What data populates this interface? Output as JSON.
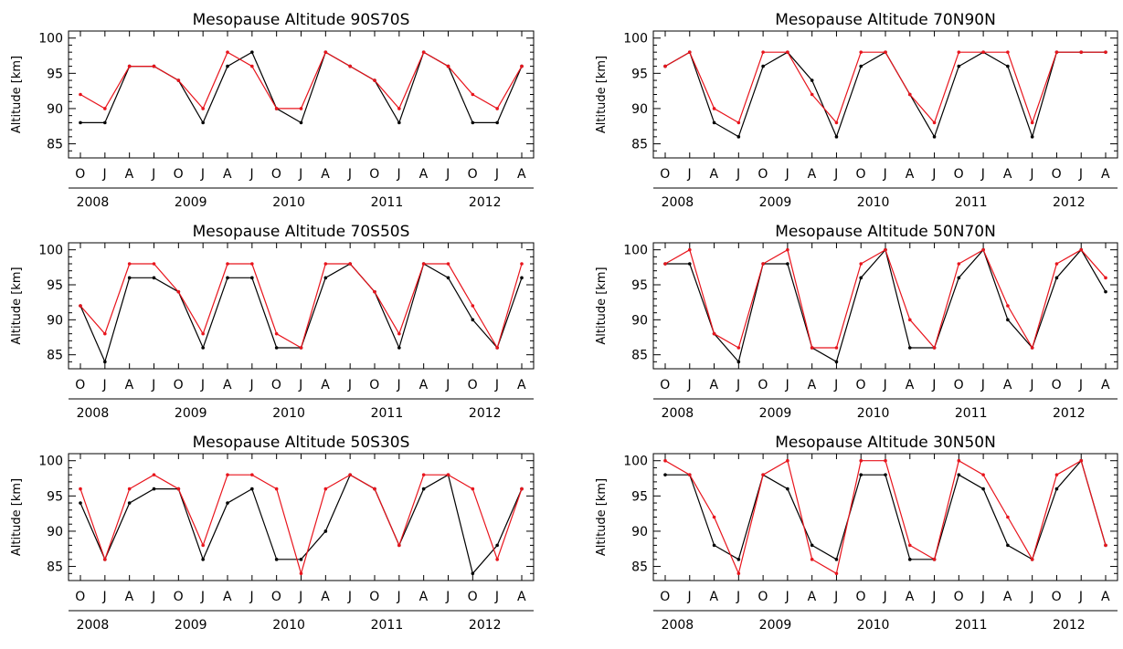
{
  "colors": {
    "series_red": "#e8141c",
    "series_black": "#000000",
    "axis": "#000000"
  },
  "chart_data": [
    {
      "type": "line",
      "title": "Mesopause Altitude 90S70S",
      "ylabel": "Altitude [km]",
      "ylim": [
        83,
        101
      ],
      "yticks": [
        85,
        90,
        95,
        100
      ],
      "x_tick_labels": [
        "O",
        "J",
        "A",
        "J",
        "O",
        "J",
        "A",
        "J",
        "O",
        "J",
        "A",
        "J",
        "O",
        "J",
        "A",
        "J",
        "O",
        "J",
        "A"
      ],
      "year_labels": [
        "2008",
        "2009",
        "2010",
        "2011",
        "2012"
      ],
      "series": [
        {
          "color": "#e8141c",
          "values": [
            92,
            90,
            96,
            96,
            94,
            90,
            98,
            96,
            90,
            90,
            98,
            96,
            94,
            90,
            98,
            96,
            92,
            90,
            96
          ]
        },
        {
          "color": "#000000",
          "values": [
            88,
            88,
            96,
            96,
            94,
            88,
            96,
            98,
            90,
            88,
            98,
            96,
            94,
            88,
            98,
            96,
            88,
            88,
            96
          ]
        }
      ]
    },
    {
      "type": "line",
      "title": "Mesopause Altitude 70N90N",
      "ylabel": "Altitude [km]",
      "ylim": [
        83,
        101
      ],
      "yticks": [
        85,
        90,
        95,
        100
      ],
      "x_tick_labels": [
        "O",
        "J",
        "A",
        "J",
        "O",
        "J",
        "A",
        "J",
        "O",
        "J",
        "A",
        "J",
        "O",
        "J",
        "A",
        "J",
        "O",
        "J",
        "A"
      ],
      "year_labels": [
        "2008",
        "2009",
        "2010",
        "2011",
        "2012"
      ],
      "series": [
        {
          "color": "#e8141c",
          "values": [
            96,
            98,
            90,
            88,
            98,
            98,
            92,
            88,
            98,
            98,
            92,
            88,
            98,
            98,
            98,
            88,
            98,
            98,
            98
          ]
        },
        {
          "color": "#000000",
          "values": [
            96,
            98,
            88,
            86,
            96,
            98,
            94,
            86,
            96,
            98,
            92,
            86,
            96,
            98,
            96,
            86,
            98,
            98,
            98
          ]
        }
      ]
    },
    {
      "type": "line",
      "title": "Mesopause Altitude 70S50S",
      "ylabel": "Altitude [km]",
      "ylim": [
        83,
        101
      ],
      "yticks": [
        85,
        90,
        95,
        100
      ],
      "x_tick_labels": [
        "O",
        "J",
        "A",
        "J",
        "O",
        "J",
        "A",
        "J",
        "O",
        "J",
        "A",
        "J",
        "O",
        "J",
        "A",
        "J",
        "O",
        "J",
        "A"
      ],
      "year_labels": [
        "2008",
        "2009",
        "2010",
        "2011",
        "2012"
      ],
      "series": [
        {
          "color": "#e8141c",
          "values": [
            92,
            88,
            98,
            98,
            94,
            88,
            98,
            98,
            88,
            86,
            98,
            98,
            94,
            88,
            98,
            98,
            92,
            86,
            98
          ]
        },
        {
          "color": "#000000",
          "values": [
            92,
            84,
            96,
            96,
            94,
            86,
            96,
            96,
            86,
            86,
            96,
            98,
            94,
            86,
            98,
            96,
            90,
            86,
            96
          ]
        }
      ]
    },
    {
      "type": "line",
      "title": "Mesopause Altitude 50N70N",
      "ylabel": "Altitude [km]",
      "ylim": [
        83,
        101
      ],
      "yticks": [
        85,
        90,
        95,
        100
      ],
      "x_tick_labels": [
        "O",
        "J",
        "A",
        "J",
        "O",
        "J",
        "A",
        "J",
        "O",
        "J",
        "A",
        "J",
        "O",
        "J",
        "A",
        "J",
        "O",
        "J",
        "A"
      ],
      "year_labels": [
        "2008",
        "2009",
        "2010",
        "2011",
        "2012"
      ],
      "series": [
        {
          "color": "#e8141c",
          "values": [
            98,
            100,
            88,
            86,
            98,
            100,
            86,
            86,
            98,
            100,
            90,
            86,
            98,
            100,
            92,
            86,
            98,
            100,
            96
          ]
        },
        {
          "color": "#000000",
          "values": [
            98,
            98,
            88,
            84,
            98,
            98,
            86,
            84,
            96,
            100,
            86,
            86,
            96,
            100,
            90,
            86,
            96,
            100,
            94
          ]
        }
      ]
    },
    {
      "type": "line",
      "title": "Mesopause Altitude 50S30S",
      "ylabel": "Altitude [km]",
      "ylim": [
        83,
        101
      ],
      "yticks": [
        85,
        90,
        95,
        100
      ],
      "x_tick_labels": [
        "O",
        "J",
        "A",
        "J",
        "O",
        "J",
        "A",
        "J",
        "O",
        "J",
        "A",
        "J",
        "O",
        "J",
        "A",
        "J",
        "O",
        "J",
        "A"
      ],
      "year_labels": [
        "2008",
        "2009",
        "2010",
        "2011",
        "2012"
      ],
      "series": [
        {
          "color": "#e8141c",
          "values": [
            96,
            86,
            96,
            98,
            96,
            88,
            98,
            98,
            96,
            84,
            96,
            98,
            96,
            88,
            98,
            98,
            96,
            86,
            96
          ]
        },
        {
          "color": "#000000",
          "values": [
            94,
            86,
            94,
            96,
            96,
            86,
            94,
            96,
            86,
            86,
            90,
            98,
            96,
            88,
            96,
            98,
            84,
            88,
            96
          ]
        }
      ]
    },
    {
      "type": "line",
      "title": "Mesopause Altitude 30N50N",
      "ylabel": "Altitude [km]",
      "ylim": [
        83,
        101
      ],
      "yticks": [
        85,
        90,
        95,
        100
      ],
      "x_tick_labels": [
        "O",
        "J",
        "A",
        "J",
        "O",
        "J",
        "A",
        "J",
        "O",
        "J",
        "A",
        "J",
        "O",
        "J",
        "A",
        "J",
        "O",
        "J",
        "A"
      ],
      "year_labels": [
        "2008",
        "2009",
        "2010",
        "2011",
        "2012"
      ],
      "series": [
        {
          "color": "#e8141c",
          "values": [
            100,
            98,
            92,
            84,
            98,
            100,
            86,
            84,
            100,
            100,
            88,
            86,
            100,
            98,
            92,
            86,
            98,
            100,
            88
          ]
        },
        {
          "color": "#000000",
          "values": [
            98,
            98,
            88,
            86,
            98,
            96,
            88,
            86,
            98,
            98,
            86,
            86,
            98,
            96,
            88,
            86,
            96,
            100,
            88
          ]
        }
      ]
    }
  ]
}
